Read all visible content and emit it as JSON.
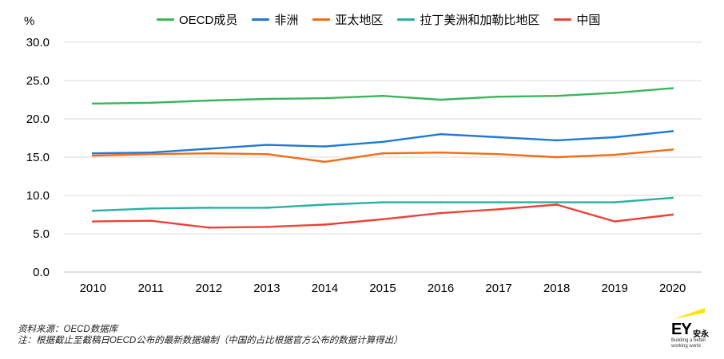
{
  "chart_data": {
    "type": "line",
    "ylabel": "%",
    "ylim": [
      0,
      30
    ],
    "yticks": [
      "0.0",
      "5.0",
      "10.0",
      "15.0",
      "20.0",
      "25.0",
      "30.0"
    ],
    "categories": [
      "2010",
      "2011",
      "2012",
      "2013",
      "2014",
      "2015",
      "2016",
      "2017",
      "2018",
      "2019",
      "2020"
    ],
    "grid": true,
    "legend_position": "top",
    "series": [
      {
        "name": "OECD成员",
        "color": "#3cb55a",
        "values": [
          22.0,
          22.1,
          22.4,
          22.6,
          22.7,
          23.0,
          22.5,
          22.9,
          23.0,
          23.4,
          24.0
        ]
      },
      {
        "name": "非洲",
        "color": "#1f78d6",
        "values": [
          15.5,
          15.6,
          16.1,
          16.6,
          16.4,
          17.0,
          18.0,
          17.6,
          17.2,
          17.6,
          18.4
        ]
      },
      {
        "name": "亚太地区",
        "color": "#f36b14",
        "values": [
          15.2,
          15.4,
          15.5,
          15.4,
          14.4,
          15.5,
          15.6,
          15.4,
          15.0,
          15.3,
          16.0
        ]
      },
      {
        "name": "拉丁美洲和加勒比地区",
        "color": "#2ab0a0",
        "values": [
          8.0,
          8.3,
          8.4,
          8.4,
          8.8,
          9.1,
          9.1,
          9.1,
          9.1,
          9.1,
          9.7
        ]
      },
      {
        "name": "中国",
        "color": "#ee4136",
        "values": [
          6.6,
          6.7,
          5.8,
          5.9,
          6.2,
          6.9,
          7.7,
          8.2,
          8.8,
          6.6,
          7.5
        ]
      }
    ]
  },
  "footnotes": {
    "source": "资料来源：OECD数据库",
    "note": "注：根据截止至截稿日OECD公布的最新数据编制（中国的占比根据官方公布的数据计算得出）"
  },
  "logo": {
    "mark": "EY",
    "cn": "安永",
    "tagline1": "Building a better",
    "tagline2": "working world",
    "beam_color": "#ffe600"
  }
}
